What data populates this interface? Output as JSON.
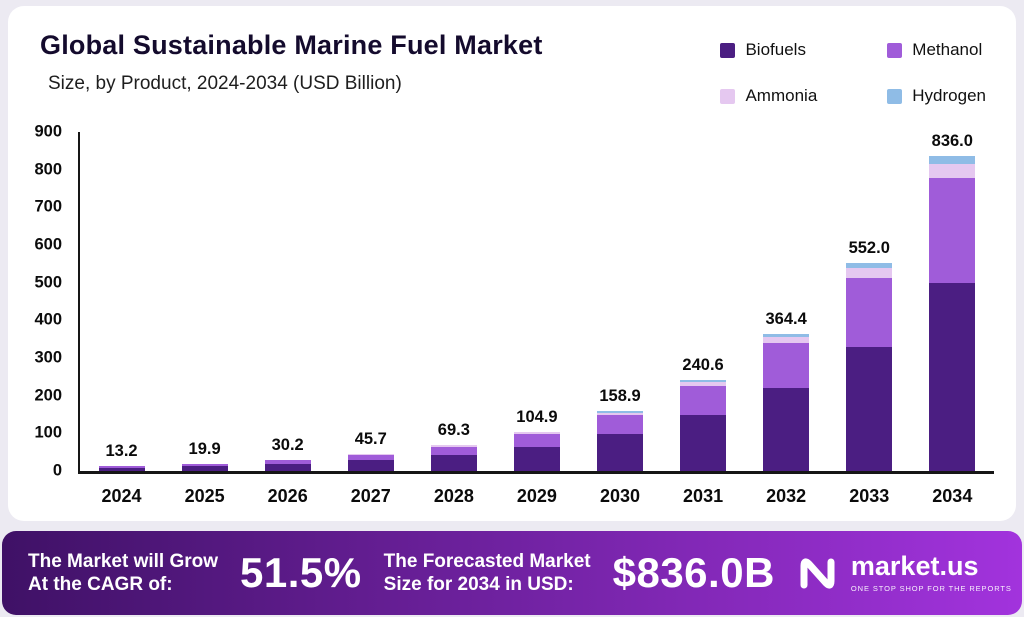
{
  "page": {
    "title": "Global Sustainable Marine Fuel Market",
    "subtitle": "Size, by Product, 2024-2034 (USD Billion)"
  },
  "chart_data": {
    "type": "bar",
    "stacked": true,
    "title": "Global Sustainable Marine Fuel Market",
    "subtitle": "Size, by Product, 2024-2034 (USD Billion)",
    "categories": [
      "2024",
      "2025",
      "2026",
      "2027",
      "2028",
      "2029",
      "2030",
      "2031",
      "2032",
      "2033",
      "2034"
    ],
    "series": [
      {
        "name": "Biofuels",
        "color": "#4b1e82",
        "values": [
          8.0,
          12.0,
          18.5,
          28.0,
          43.0,
          65.0,
          97.0,
          148.0,
          220.0,
          330.0,
          498.0
        ]
      },
      {
        "name": "Methanol",
        "color": "#a05cd9",
        "values": [
          4.4,
          6.6,
          9.8,
          14.7,
          21.8,
          33.0,
          51.0,
          77.0,
          119.0,
          183.0,
          280.0
        ]
      },
      {
        "name": "Ammonia",
        "color": "#e5c8f0",
        "values": [
          0.5,
          0.8,
          1.2,
          2.0,
          3.0,
          4.5,
          7.0,
          10.6,
          16.4,
          26.0,
          38.0
        ]
      },
      {
        "name": "Hydrogen",
        "color": "#8fbce6",
        "values": [
          0.3,
          0.5,
          0.7,
          1.0,
          1.5,
          2.4,
          3.9,
          5.0,
          9.0,
          13.0,
          20.0
        ]
      }
    ],
    "totals": [
      13.2,
      19.9,
      30.2,
      45.7,
      69.3,
      104.9,
      158.9,
      240.6,
      364.4,
      552.0,
      836.0
    ],
    "ylabel": "",
    "xlabel": "",
    "ylim": [
      0,
      900
    ],
    "ytick_step": 100,
    "grid": false,
    "legend_position": "top-right"
  },
  "banner": {
    "growth_label_line1": "The Market will Grow",
    "growth_label_line2": "At the CAGR of:",
    "cagr": "51.5%",
    "forecast_label_line1": "The Forecasted Market",
    "forecast_label_line2": "Size for 2034 in USD:",
    "forecast_value": "$836.0B",
    "brand": "market.us",
    "brand_tagline": "ONE STOP SHOP FOR THE REPORTS",
    "gradient_left": "#3f1166",
    "gradient_right": "#a233dd"
  }
}
